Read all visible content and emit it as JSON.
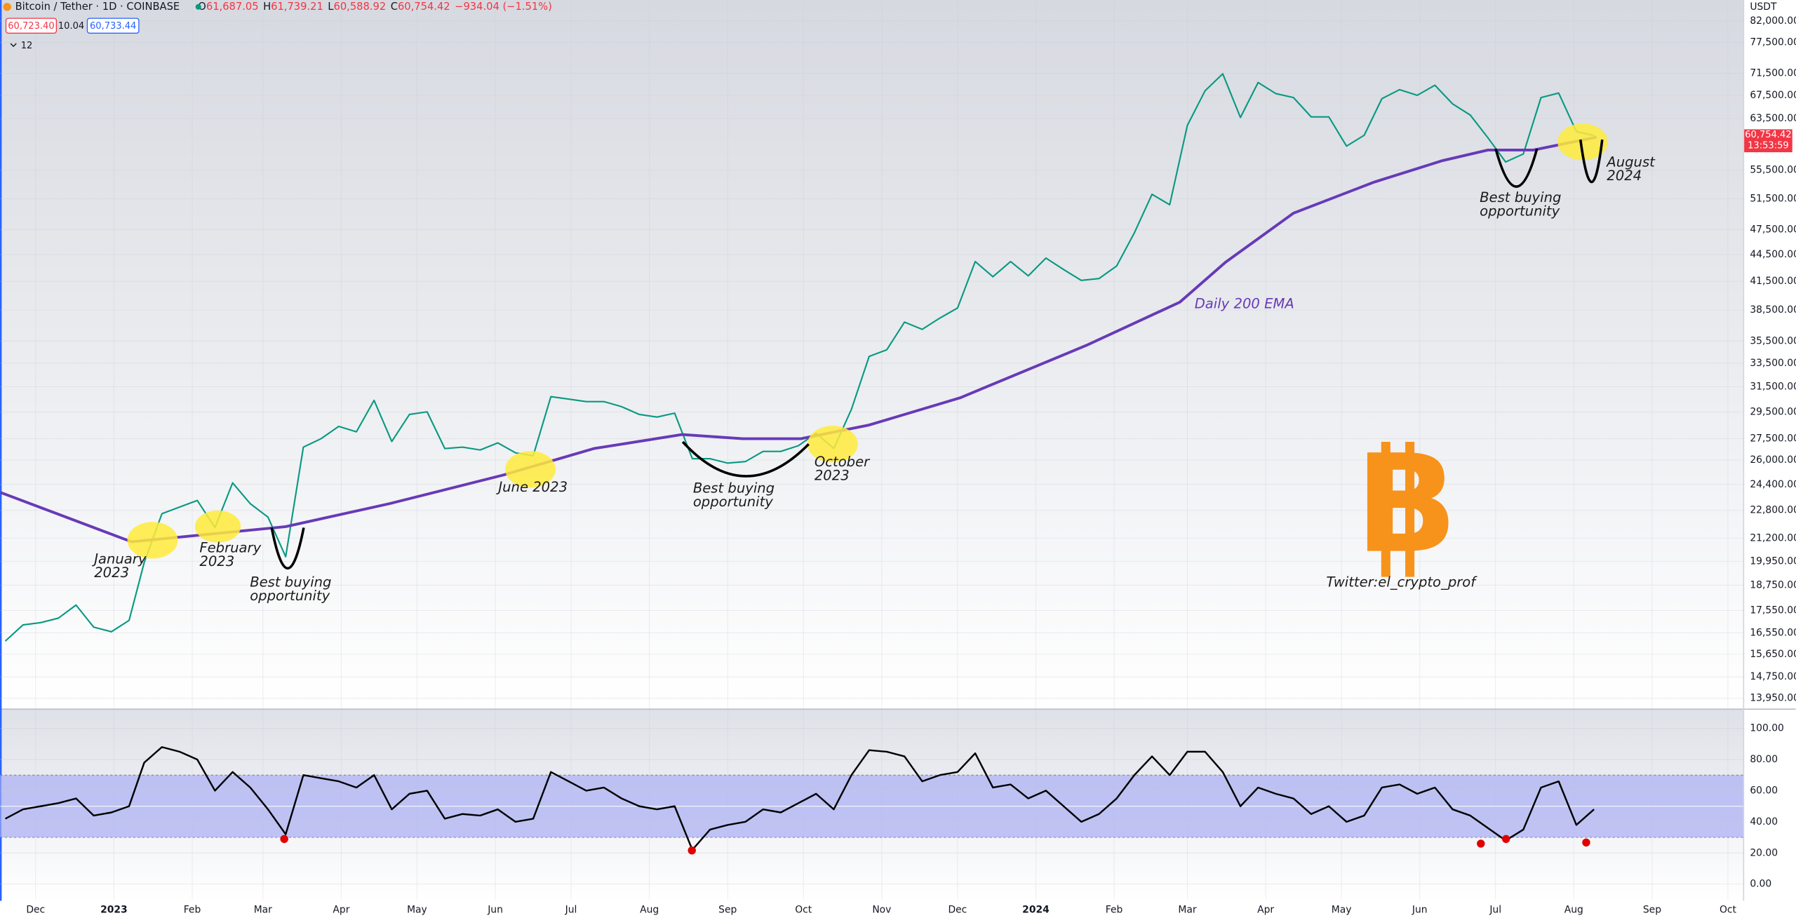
{
  "header": {
    "symbol": "Bitcoin / Tether · 1D · COINBASE",
    "ohlc": [
      {
        "key": "O",
        "value": "61,687.05"
      },
      {
        "key": "H",
        "value": "61,739.21"
      },
      {
        "key": "L",
        "value": "60,588.92"
      },
      {
        "key": "C",
        "value": "60,754.42"
      }
    ],
    "change": "−934.04 (−1.51%)",
    "bid": "60,723.40",
    "spread": "10.04",
    "ask": "60,733.44",
    "indicators": "12",
    "currency": "USDT",
    "last_price": "60,754.42",
    "countdown": "13:53:59"
  },
  "chart_data": [
    {
      "type": "line",
      "log_scale": true,
      "xlim": [
        -14,
        676
      ],
      "xticks": [
        {
          "value": 0,
          "label": "Dec"
        },
        {
          "value": 31,
          "label": "2023"
        },
        {
          "value": 62,
          "label": "Feb"
        },
        {
          "value": 90,
          "label": "Mar"
        },
        {
          "value": 121,
          "label": "Apr"
        },
        {
          "value": 151,
          "label": "May"
        },
        {
          "value": 182,
          "label": "Jun"
        },
        {
          "value": 212,
          "label": "Jul"
        },
        {
          "value": 243,
          "label": "Aug"
        },
        {
          "value": 274,
          "label": "Sep"
        },
        {
          "value": 304,
          "label": "Oct"
        },
        {
          "value": 335,
          "label": "Nov"
        },
        {
          "value": 365,
          "label": "Dec"
        },
        {
          "value": 396,
          "label": "2024"
        },
        {
          "value": 427,
          "label": "Feb"
        },
        {
          "value": 456,
          "label": "Mar"
        },
        {
          "value": 487,
          "label": "Apr"
        },
        {
          "value": 517,
          "label": "May"
        },
        {
          "value": 548,
          "label": "Jun"
        },
        {
          "value": 578,
          "label": "Jul"
        },
        {
          "value": 609,
          "label": "Aug"
        },
        {
          "value": 640,
          "label": "Sep"
        },
        {
          "value": 670,
          "label": "Oct"
        }
      ],
      "ylim": [
        13580,
        86600
      ],
      "yticks": [
        {
          "value": 82000,
          "label": "82,000.00"
        },
        {
          "value": 77500,
          "label": "77,500.00"
        },
        {
          "value": 71500,
          "label": "71,500.00"
        },
        {
          "value": 67500,
          "label": "67,500.00"
        },
        {
          "value": 63500,
          "label": "63,500.00"
        },
        {
          "value": 55500,
          "label": "55,500.00"
        },
        {
          "value": 51500,
          "label": "51,500.00"
        },
        {
          "value": 47500,
          "label": "47,500.00"
        },
        {
          "value": 44500,
          "label": "44,500.00"
        },
        {
          "value": 41500,
          "label": "41,500.00"
        },
        {
          "value": 38500,
          "label": "38,500.00"
        },
        {
          "value": 35500,
          "label": "35,500.00"
        },
        {
          "value": 33500,
          "label": "33,500.00"
        },
        {
          "value": 31500,
          "label": "31,500.00"
        },
        {
          "value": 29500,
          "label": "29,500.00"
        },
        {
          "value": 27500,
          "label": "27,500.00"
        },
        {
          "value": 26000,
          "label": "26,000.00"
        },
        {
          "value": 24400,
          "label": "24,400.00"
        },
        {
          "value": 22800,
          "label": "22,800.00"
        },
        {
          "value": 21200,
          "label": "21,200.00"
        },
        {
          "value": 19950,
          "label": "19,950.00"
        },
        {
          "value": 18750,
          "label": "18,750.00"
        },
        {
          "value": 17550,
          "label": "17,550.00"
        },
        {
          "value": 16550,
          "label": "16,550.00"
        },
        {
          "value": 15650,
          "label": "15,650.00"
        },
        {
          "value": 14750,
          "label": "14,750.00"
        },
        {
          "value": 13950,
          "label": "13,950.00"
        }
      ],
      "grid": true,
      "series": [
        {
          "color": "#089981",
          "x": [
            -12,
            -5,
            2,
            9,
            16,
            23,
            30,
            37,
            43,
            50,
            57,
            64,
            71,
            78,
            85,
            92,
            99,
            106,
            113,
            120,
            127,
            134,
            141,
            148,
            155,
            162,
            169,
            176,
            183,
            190,
            197,
            204,
            211,
            218,
            225,
            232,
            239,
            246,
            253,
            260,
            267,
            274,
            281,
            288,
            295,
            302,
            309,
            316,
            323,
            330,
            337,
            344,
            351,
            358,
            365,
            372,
            379,
            386,
            393,
            400,
            407,
            414,
            421,
            428,
            435,
            442,
            449,
            456,
            463,
            470,
            477,
            484,
            491,
            498,
            505,
            512,
            519,
            526,
            533,
            540,
            547,
            554,
            561,
            568,
            575,
            582,
            589,
            596,
            603,
            610,
            617
          ],
          "values": [
            16200,
            16900,
            17000,
            17200,
            17800,
            16800,
            16600,
            17100,
            19900,
            22600,
            23000,
            23400,
            21800,
            24500,
            23200,
            22400,
            20200,
            26900,
            27500,
            28400,
            28000,
            30400,
            27300,
            29300,
            29500,
            26800,
            26900,
            26700,
            27200,
            26500,
            26300,
            30700,
            30500,
            30300,
            30300,
            29900,
            29300,
            29100,
            29400,
            26100,
            26100,
            25800,
            25900,
            26600,
            26600,
            27000,
            27900,
            26800,
            29700,
            34100,
            34700,
            37300,
            36600,
            37700,
            38700,
            43700,
            42000,
            43700,
            42100,
            44100,
            42800,
            41600,
            41800,
            43200,
            47100,
            52100,
            50700,
            62400,
            68300,
            71400,
            63700,
            69800,
            67800,
            67100,
            63800,
            63800,
            59100,
            60800,
            66900,
            68500,
            67500,
            69300,
            66000,
            64100,
            60400,
            56700,
            57900,
            67100,
            67900,
            61400,
            60754.42
          ]
        },
        {
          "name": "Daily 200 EMA",
          "color": "#673ab7",
          "x": [
            -14,
            38,
            99,
            140,
            185,
            221,
            256,
            280,
            303,
            330,
            366,
            416,
            453,
            471,
            498,
            530,
            557,
            575,
            593,
            618
          ],
          "values": [
            23900,
            21000,
            21850,
            23200,
            25000,
            26800,
            27800,
            27500,
            27500,
            28500,
            30600,
            35100,
            39300,
            43600,
            49600,
            53800,
            56900,
            58500,
            58500,
            60500
          ]
        }
      ],
      "annotations": [
        {
          "lines": [
            "January",
            "2023"
          ]
        },
        {
          "lines": [
            "February",
            "2023"
          ]
        },
        {
          "lines": [
            "Best buying",
            "opportunity"
          ]
        },
        {
          "lines": [
            "June 2023"
          ]
        },
        {
          "lines": [
            "Best buying",
            "opportunity"
          ]
        },
        {
          "lines": [
            "October",
            "2023"
          ]
        },
        {
          "lines": [
            "Best buying",
            "opportunity"
          ]
        },
        {
          "lines": [
            "August",
            "2024"
          ]
        },
        {
          "lines": [
            "Twitter:el_crypto_prof"
          ]
        }
      ],
      "logo": "B"
    },
    {
      "type": "line",
      "ylim": [
        -10,
        112
      ],
      "yticks": [
        {
          "value": 100,
          "label": "100.00"
        },
        {
          "value": 80,
          "label": "80.00"
        },
        {
          "value": 60,
          "label": "60.00"
        },
        {
          "value": 40,
          "label": "40.00"
        },
        {
          "value": 20,
          "label": "20.00"
        },
        {
          "value": 0,
          "label": "0.00"
        }
      ],
      "band": [
        30,
        70
      ],
      "midline": 50,
      "band_color": "#b2b5f2",
      "series": [
        {
          "color": "#000000",
          "x": [
            -12,
            -5,
            2,
            9,
            16,
            23,
            30,
            37,
            43,
            50,
            57,
            64,
            71,
            78,
            85,
            92,
            99,
            106,
            113,
            120,
            127,
            134,
            141,
            148,
            155,
            162,
            169,
            176,
            183,
            190,
            197,
            204,
            211,
            218,
            225,
            232,
            239,
            246,
            253,
            260,
            267,
            274,
            281,
            288,
            295,
            302,
            309,
            316,
            323,
            330,
            337,
            344,
            351,
            358,
            365,
            372,
            379,
            386,
            393,
            400,
            407,
            414,
            421,
            428,
            435,
            442,
            449,
            456,
            463,
            470,
            477,
            484,
            491,
            498,
            505,
            512,
            519,
            526,
            533,
            540,
            547,
            554,
            561,
            568,
            575,
            582,
            589,
            596,
            603,
            610,
            617
          ],
          "values": [
            42,
            48,
            50,
            52,
            55,
            44,
            46,
            50,
            78,
            88,
            85,
            80,
            60,
            72,
            62,
            48,
            32,
            70,
            68,
            66,
            62,
            70,
            48,
            58,
            60,
            42,
            45,
            44,
            48,
            40,
            42,
            72,
            66,
            60,
            62,
            55,
            50,
            48,
            50,
            22,
            35,
            38,
            40,
            48,
            46,
            52,
            58,
            48,
            70,
            86,
            85,
            82,
            66,
            70,
            72,
            84,
            62,
            64,
            55,
            60,
            50,
            40,
            45,
            55,
            70,
            82,
            70,
            85,
            85,
            72,
            50,
            62,
            58,
            55,
            45,
            50,
            40,
            44,
            62,
            64,
            58,
            62,
            48,
            44,
            36,
            28,
            35,
            62,
            66,
            38,
            48
          ]
        }
      ]
    }
  ]
}
